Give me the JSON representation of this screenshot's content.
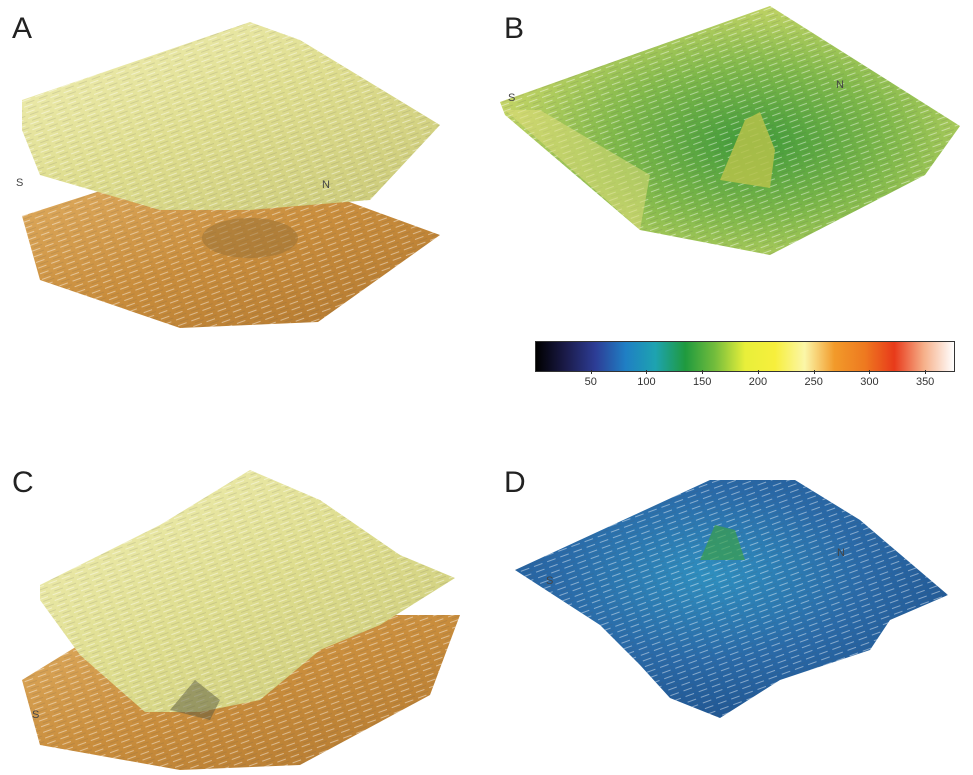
{
  "panels": [
    {
      "letter": "A",
      "dir_s": "S",
      "dir_n": "N"
    },
    {
      "letter": "B",
      "dir_s": "S",
      "dir_n": "N"
    },
    {
      "letter": "C",
      "dir_s": "S",
      "dir_n": ""
    },
    {
      "letter": "D",
      "dir_s": "S",
      "dir_n": "N"
    }
  ],
  "colors": {
    "yellow_surface": "#e6e49a",
    "orange_surface": "#cf9a48",
    "green_surface": "#8cbd4e",
    "blue_surface": "#2a6aa8"
  },
  "colorbar": {
    "ticks": [
      "50",
      "100",
      "150",
      "200",
      "250",
      "300",
      "350"
    ],
    "tick_values": [
      50,
      100,
      150,
      200,
      250,
      300,
      350
    ],
    "min": 0,
    "max": 375,
    "stops": [
      "#000000",
      "#1b1b4a",
      "#2d3d96",
      "#1f7fc4",
      "#1ea3b0",
      "#1f9a3e",
      "#74bd3c",
      "#e8ef3a",
      "#f7ef3c",
      "#fbf6a8",
      "#f29a2a",
      "#ee7a20",
      "#e83a1a",
      "#f6b08a",
      "#ffffff"
    ]
  }
}
